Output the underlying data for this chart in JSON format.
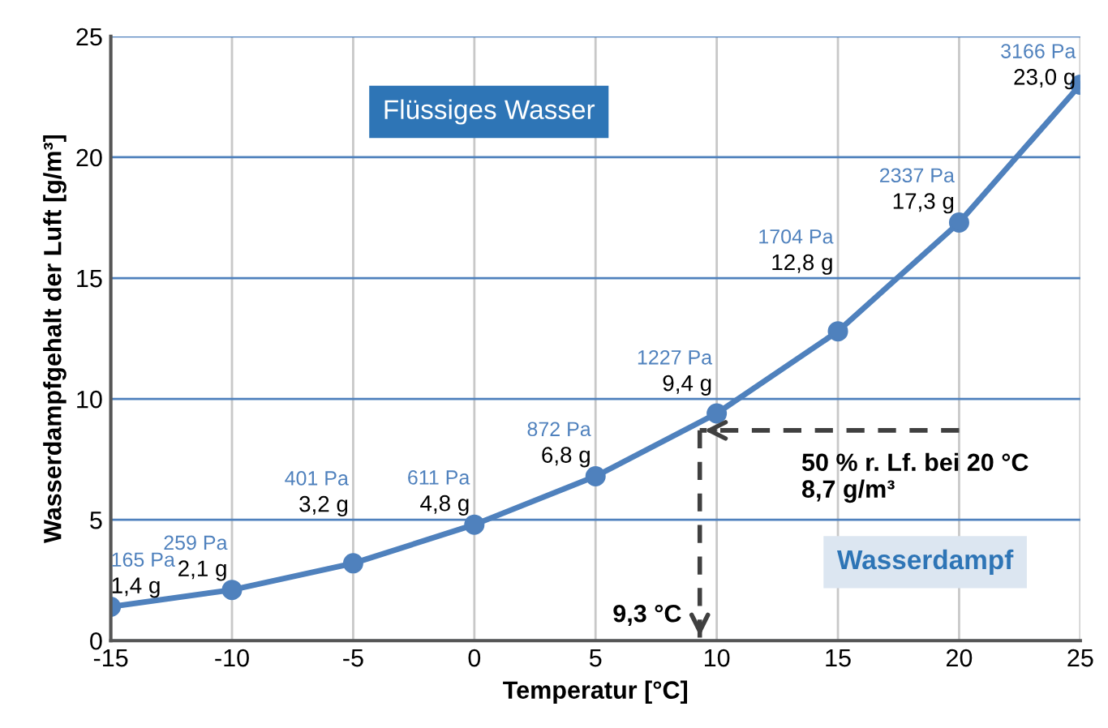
{
  "chart_data": {
    "type": "line",
    "xlabel": "Temperatur [°C]",
    "ylabel": "Wasserdampfgehalt der Luft [g/m³]",
    "x": [
      -15,
      -10,
      -5,
      0,
      5,
      10,
      15,
      20,
      25
    ],
    "series": [
      {
        "color": "#4f81bd",
        "values": [
          1.4,
          2.1,
          3.2,
          4.8,
          6.8,
          9.4,
          12.8,
          17.3,
          23.0
        ],
        "value_labels": [
          "1,4 g",
          "2,1 g",
          "3,2 g",
          "4,8 g",
          "6,8 g",
          "9,4 g",
          "12,8 g",
          "17,3 g",
          "23,0 g"
        ]
      }
    ],
    "marker": "circle",
    "line_style": "solid",
    "grid": true,
    "xlim": [
      -15,
      25
    ],
    "xticks": [
      -15,
      -10,
      -5,
      0,
      5,
      10,
      15,
      20,
      25
    ],
    "ylim": [
      0,
      25
    ],
    "yticks": [
      0,
      5,
      10,
      15,
      20,
      25
    ],
    "annotations": [
      "Flüssiges Wasser",
      "Wasserdampf",
      "165 Pa",
      "259 Pa",
      "401 Pa",
      "611 Pa",
      "872 Pa",
      "1227 Pa",
      "1704 Pa",
      "2337 Pa",
      "3166 Pa"
    ],
    "ref_lines": [
      {
        "axis": "y",
        "value": 8.7,
        "label": "50 % r. Lf. bei 20 °C\n8,7 g/m³",
        "line_style": "dashed",
        "color": "#404040"
      },
      {
        "axis": "x",
        "value": 9.3,
        "label": "9,3 °C",
        "line_style": "dashed",
        "color": "#404040"
      }
    ]
  }
}
